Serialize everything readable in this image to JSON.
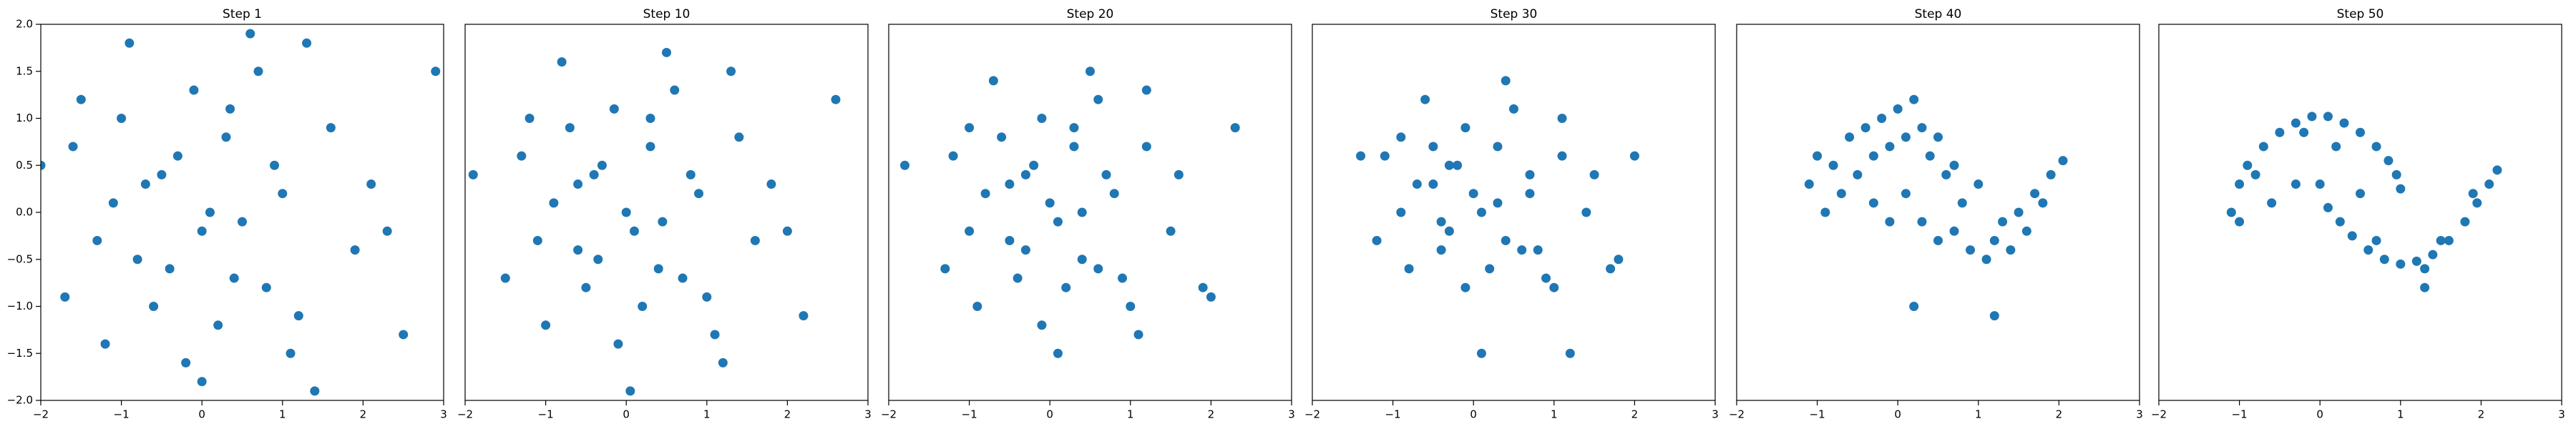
{
  "chart_data": [
    {
      "type": "scatter",
      "title": "Step 1",
      "color": "#1f77b4",
      "xlim": [
        -2,
        3
      ],
      "ylim": [
        -2,
        2
      ],
      "xticks": [
        {
          "value": -2,
          "label": "−2"
        },
        {
          "value": -1,
          "label": "−1"
        },
        0,
        1,
        2,
        3
      ],
      "yticks": [
        {
          "value": -2,
          "label": "−2.0"
        },
        {
          "value": -1.5,
          "label": "−1.5"
        },
        {
          "value": -1,
          "label": "−1.0"
        },
        {
          "value": -0.5,
          "label": "−0.5"
        },
        {
          "value": 0,
          "label": "0.0"
        },
        0.5,
        {
          "value": 1,
          "label": "1.0"
        },
        1.5,
        {
          "value": 2,
          "label": "2.0"
        }
      ],
      "x": [
        -1.5,
        -0.8,
        0.3,
        1.2,
        2.1,
        -0.2,
        0.7,
        -1.1,
        0.0,
        1.6,
        -1.7,
        0.4,
        -0.5,
        2.5,
        1.0,
        -0.9,
        0.2,
        -1.3,
        0.8,
        1.9,
        -0.3,
        0.6,
        -2.0,
        1.4,
        -0.6,
        0.1,
        2.9,
        -1.0,
        0.5,
        -0.1,
        1.1,
        -1.6,
        0.9,
        -0.4,
        2.3,
        -0.7,
        1.3,
        0.0,
        -1.2,
        0.35
      ],
      "y": [
        1.2,
        -0.5,
        0.8,
        -1.1,
        0.3,
        -1.6,
        1.5,
        0.1,
        -0.2,
        0.9,
        -0.9,
        -0.7,
        0.4,
        -1.3,
        0.2,
        1.8,
        -1.2,
        -0.3,
        -0.8,
        -0.4,
        0.6,
        1.9,
        0.5,
        -1.9,
        -1.0,
        0.0,
        1.5,
        1.0,
        -0.1,
        1.3,
        -1.5,
        0.7,
        0.5,
        -0.6,
        -0.2,
        0.3,
        1.8,
        -1.8,
        -1.4,
        1.1
      ]
    },
    {
      "type": "scatter",
      "title": "Step 10",
      "color": "#1f77b4",
      "xlim": [
        -2,
        3
      ],
      "ylim": [
        -2,
        2
      ],
      "xticks": [
        {
          "value": -2,
          "label": "−2"
        },
        {
          "value": -1,
          "label": "−1"
        },
        0,
        1,
        2,
        3
      ],
      "x": [
        -1.2,
        -0.6,
        0.3,
        1.0,
        1.8,
        -0.1,
        0.6,
        -0.9,
        0.1,
        1.4,
        -1.5,
        0.4,
        -0.4,
        2.2,
        0.9,
        -0.8,
        0.2,
        -1.1,
        0.7,
        1.6,
        -0.3,
        0.5,
        -1.9,
        1.2,
        -0.5,
        0.0,
        2.6,
        -0.7,
        0.45,
        -0.15,
        1.1,
        -1.3,
        0.8,
        -0.35,
        2.0,
        -0.6,
        1.3,
        0.05,
        -1.0,
        0.3
      ],
      "y": [
        1.0,
        -0.4,
        0.7,
        -0.9,
        0.3,
        -1.4,
        1.3,
        0.1,
        -0.2,
        0.8,
        -0.7,
        -0.6,
        0.4,
        -1.1,
        0.2,
        1.6,
        -1.0,
        -0.3,
        -0.7,
        -0.3,
        0.5,
        1.7,
        0.4,
        -1.6,
        -0.8,
        0.0,
        1.2,
        0.9,
        -0.1,
        1.1,
        -1.3,
        0.6,
        0.4,
        -0.5,
        -0.2,
        0.3,
        1.5,
        -1.9,
        -1.2,
        1.0
      ]
    },
    {
      "type": "scatter",
      "title": "Step 20",
      "color": "#1f77b4",
      "xlim": [
        -2,
        3
      ],
      "ylim": [
        -2,
        2
      ],
      "xticks": [
        {
          "value": -2,
          "label": "−2"
        },
        {
          "value": -1,
          "label": "−1"
        },
        0,
        1,
        2,
        3
      ],
      "x": [
        -1.0,
        -0.5,
        0.3,
        0.9,
        1.6,
        -0.1,
        0.6,
        -0.8,
        0.1,
        1.2,
        -1.3,
        0.4,
        -0.3,
        2.0,
        0.8,
        -0.7,
        0.2,
        -1.0,
        0.6,
        1.5,
        -0.2,
        0.5,
        -1.8,
        1.1,
        -0.4,
        0.0,
        2.3,
        -0.6,
        0.4,
        -0.1,
        1.0,
        -1.2,
        0.7,
        -0.3,
        1.9,
        -0.5,
        1.2,
        0.1,
        -0.9,
        0.3
      ],
      "y": [
        0.9,
        -0.3,
        0.7,
        -0.7,
        0.4,
        -1.2,
        1.2,
        0.2,
        -0.1,
        0.7,
        -0.6,
        -0.5,
        0.4,
        -0.9,
        0.2,
        1.4,
        -0.8,
        -0.2,
        -0.6,
        -0.2,
        0.5,
        1.5,
        0.5,
        -1.3,
        -0.7,
        0.1,
        0.9,
        0.8,
        0.0,
        1.0,
        -1.0,
        0.6,
        0.4,
        -0.4,
        -0.8,
        0.3,
        1.3,
        -1.5,
        -1.0,
        0.9
      ]
    },
    {
      "type": "scatter",
      "title": "Step 30",
      "color": "#1f77b4",
      "xlim": [
        -2,
        3
      ],
      "ylim": [
        -2,
        2
      ],
      "xticks": [
        {
          "value": -2,
          "label": "−2"
        },
        {
          "value": -1,
          "label": "−1"
        },
        0,
        1,
        2,
        3
      ],
      "x": [
        -0.9,
        -0.4,
        0.3,
        0.8,
        1.5,
        -0.1,
        0.5,
        -0.7,
        0.1,
        1.1,
        -1.2,
        0.4,
        -0.3,
        1.8,
        0.7,
        -0.6,
        0.2,
        -0.9,
        0.6,
        1.4,
        -0.2,
        0.4,
        -1.4,
        1.0,
        -0.4,
        0.0,
        2.0,
        -0.5,
        0.3,
        -0.1,
        0.9,
        -1.1,
        0.7,
        -0.3,
        1.7,
        -0.5,
        1.1,
        0.1,
        -0.8,
        1.2
      ],
      "y": [
        0.8,
        -0.1,
        0.7,
        -0.4,
        0.4,
        -0.8,
        1.1,
        0.3,
        0.0,
        0.6,
        -0.3,
        -0.3,
        0.5,
        -0.5,
        0.2,
        1.2,
        -0.6,
        0.0,
        -0.4,
        0.0,
        0.5,
        1.4,
        0.6,
        -0.8,
        -0.4,
        0.2,
        0.6,
        0.7,
        0.1,
        0.9,
        -0.7,
        0.6,
        0.4,
        -0.2,
        -0.6,
        0.3,
        1.0,
        -1.5,
        -0.6,
        -1.5
      ]
    },
    {
      "type": "scatter",
      "title": "Step 40",
      "color": "#1f77b4",
      "xlim": [
        -2,
        3
      ],
      "ylim": [
        -2,
        2
      ],
      "xticks": [
        {
          "value": -2,
          "label": "−2"
        },
        {
          "value": -1,
          "label": "−1"
        },
        0,
        1,
        2,
        3
      ],
      "x": [
        -1.1,
        -1.0,
        -0.8,
        -0.7,
        -0.6,
        -0.5,
        -0.4,
        -0.3,
        -0.2,
        -0.1,
        0.0,
        0.1,
        0.2,
        0.3,
        0.4,
        0.5,
        0.6,
        0.7,
        0.8,
        1.0,
        -0.3,
        -0.1,
        0.1,
        0.3,
        0.5,
        0.7,
        0.9,
        1.1,
        1.2,
        1.3,
        1.4,
        1.5,
        1.6,
        1.7,
        1.8,
        1.9,
        2.05,
        -0.9,
        0.2,
        1.2
      ],
      "y": [
        0.3,
        0.6,
        0.5,
        0.2,
        0.8,
        0.4,
        0.9,
        0.6,
        1.0,
        0.7,
        1.1,
        0.8,
        1.2,
        0.9,
        0.6,
        0.8,
        0.4,
        0.5,
        0.1,
        0.3,
        0.1,
        -0.1,
        0.2,
        -0.1,
        -0.3,
        -0.2,
        -0.4,
        -0.5,
        -0.3,
        -0.1,
        -0.4,
        0.0,
        -0.2,
        0.2,
        0.1,
        0.4,
        0.55,
        0.0,
        -1.0,
        -1.1
      ]
    },
    {
      "type": "scatter",
      "title": "Step 50",
      "color": "#1f77b4",
      "xlim": [
        -2,
        3
      ],
      "ylim": [
        -2,
        2
      ],
      "xticks": [
        {
          "value": -2,
          "label": "−2"
        },
        {
          "value": -1,
          "label": "−1"
        },
        0,
        1,
        2,
        3
      ],
      "x": [
        -1.1,
        -1.0,
        -0.9,
        -0.7,
        -0.5,
        -0.3,
        -0.1,
        0.1,
        0.3,
        0.5,
        0.7,
        0.85,
        0.95,
        1.0,
        0.0,
        0.1,
        0.25,
        0.4,
        0.6,
        0.8,
        1.0,
        1.2,
        1.4,
        1.6,
        1.8,
        1.95,
        2.1,
        2.2,
        -0.6,
        -0.3,
        -1.0,
        0.5,
        1.3,
        0.2,
        1.9,
        -0.8,
        1.5,
        0.7,
        1.3,
        -0.2
      ],
      "y": [
        0.0,
        0.3,
        0.5,
        0.7,
        0.85,
        0.95,
        1.02,
        1.02,
        0.95,
        0.85,
        0.7,
        0.55,
        0.4,
        0.25,
        0.3,
        0.05,
        -0.1,
        -0.25,
        -0.4,
        -0.5,
        -0.55,
        -0.52,
        -0.45,
        -0.3,
        -0.1,
        0.1,
        0.3,
        0.45,
        0.1,
        0.3,
        -0.1,
        0.2,
        -0.6,
        0.7,
        0.2,
        0.4,
        -0.3,
        -0.3,
        -0.8,
        0.85
      ]
    }
  ]
}
